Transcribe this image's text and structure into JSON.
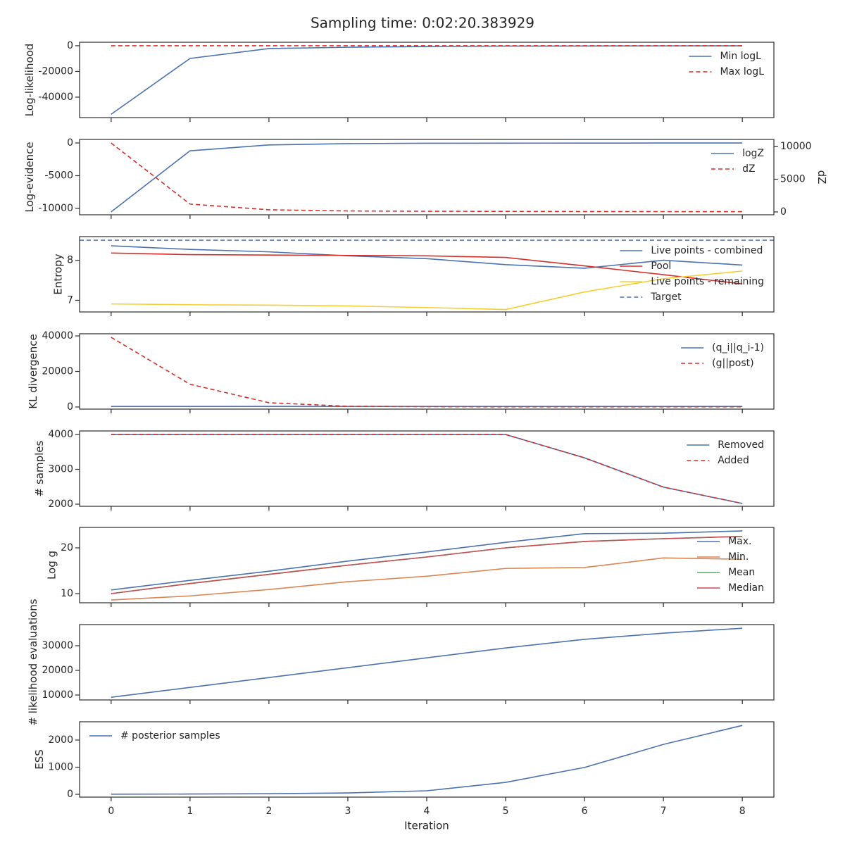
{
  "title": "Sampling time: 0:02:20.383929",
  "chart_data": [
    {
      "type": "line",
      "ylabel": "Log-likelihood",
      "x": [
        0,
        1,
        2,
        3,
        4,
        5,
        6,
        7,
        8
      ],
      "xlim": [
        -0.4,
        8.4
      ],
      "xticks": [
        0,
        1,
        2,
        3,
        4,
        5,
        6,
        7,
        8
      ],
      "ylim": [
        -55900,
        2700
      ],
      "yticks": [
        0,
        -20000,
        -40000
      ],
      "legend": "upper right",
      "series": [
        {
          "name": "Min logL",
          "color": "#4c72b0",
          "dash": false,
          "values": [
            -53300,
            -9900,
            -2200,
            -1200,
            -600,
            -300,
            -200,
            -100,
            -50
          ]
        },
        {
          "name": "Max logL",
          "color": "#d62f2a",
          "dash": true,
          "values": [
            0,
            0,
            0,
            0,
            0,
            0,
            0,
            0,
            0
          ]
        }
      ]
    },
    {
      "type": "line",
      "ylabel": "Log-evidence",
      "y2label": "dZ",
      "x": [
        0,
        1,
        2,
        3,
        4,
        5,
        6,
        7,
        8
      ],
      "xlim": [
        -0.4,
        8.4
      ],
      "xticks": [
        0,
        1,
        2,
        3,
        4,
        5,
        6,
        7,
        8
      ],
      "ylim": [
        -10980,
        540
      ],
      "yticks": [
        0,
        -5000,
        -10000
      ],
      "y2lim": [
        -435,
        11087
      ],
      "y2ticks": [
        0,
        5000,
        10000
      ],
      "legend": "upper right",
      "series": [
        {
          "name": "logZ",
          "color": "#4c72b0",
          "dash": false,
          "values": [
            -10540,
            -1200,
            -300,
            -100,
            -50,
            -30,
            -20,
            -10,
            -5
          ]
        },
        {
          "name": "dZ",
          "color": "#d62f2a",
          "dash": true,
          "axis": "y2",
          "values": [
            10540,
            1200,
            330,
            150,
            100,
            80,
            60,
            50,
            40
          ]
        }
      ]
    },
    {
      "type": "line",
      "ylabel": "Entropy",
      "x": [
        0,
        1,
        2,
        3,
        4,
        5,
        6,
        7,
        8
      ],
      "xlim": [
        -0.4,
        8.4
      ],
      "xticks": [
        0,
        1,
        2,
        3,
        4,
        5,
        6,
        7,
        8
      ],
      "ylim": [
        6.71,
        8.59
      ],
      "yticks": [
        7,
        8
      ],
      "legend": "upper right",
      "series": [
        {
          "name": "Live points - combined",
          "color": "#4c72b0",
          "dash": false,
          "values": [
            8.36,
            8.27,
            8.21,
            8.11,
            8.04,
            7.89,
            7.8,
            8.0,
            7.88
          ]
        },
        {
          "name": "Pool",
          "color": "#d62f2a",
          "dash": false,
          "values": [
            8.18,
            8.14,
            8.13,
            8.12,
            8.11,
            8.07,
            7.86,
            7.64,
            7.41
          ]
        },
        {
          "name": "Live points - remaining",
          "color": "#f5cf2f",
          "dash": false,
          "values": [
            6.91,
            6.89,
            6.88,
            6.86,
            6.82,
            6.77,
            7.21,
            7.54,
            7.73
          ]
        }
      ],
      "hlines": [
        {
          "name": "Target",
          "color": "#4c72b0",
          "dash": true,
          "value": 8.5
        }
      ]
    },
    {
      "type": "line",
      "ylabel": "KL divergence",
      "x": [
        0,
        1,
        2,
        3,
        4,
        5,
        6,
        7,
        8
      ],
      "xlim": [
        -0.4,
        8.4
      ],
      "xticks": [
        0,
        1,
        2,
        3,
        4,
        5,
        6,
        7,
        8
      ],
      "ylim": [
        -1200,
        41200
      ],
      "yticks": [
        0,
        20000,
        40000
      ],
      "legend": "upper right",
      "series": [
        {
          "name": "(q_i||q_i-1)",
          "color": "#4c72b0",
          "dash": false,
          "values": [
            300,
            300,
            300,
            300,
            300,
            300,
            300,
            300,
            300
          ]
        },
        {
          "name": "(g||post)",
          "color": "#d62f2a",
          "dash": true,
          "values": [
            39200,
            12800,
            2400,
            400,
            200,
            100,
            100,
            100,
            100
          ]
        }
      ]
    },
    {
      "type": "line",
      "ylabel": "# samples",
      "x": [
        0,
        1,
        2,
        3,
        4,
        5,
        6,
        7,
        8
      ],
      "xlim": [
        -0.4,
        8.4
      ],
      "xticks": [
        0,
        1,
        2,
        3,
        4,
        5,
        6,
        7,
        8
      ],
      "ylim": [
        1939,
        4102
      ],
      "yticks": [
        2000,
        3000,
        4000
      ],
      "legend": "upper right",
      "series": [
        {
          "name": "Removed",
          "color": "#4c72b0",
          "dash": false,
          "values": [
            4000,
            4000,
            4000,
            4000,
            4000,
            4000,
            3330,
            2490,
            2020
          ]
        },
        {
          "name": "Added",
          "color": "#d62f2a",
          "dash": true,
          "values": [
            4000,
            4000,
            4000,
            4000,
            4000,
            4000,
            3330,
            2490,
            2020
          ]
        }
      ]
    },
    {
      "type": "line",
      "ylabel": "Log g",
      "x": [
        0,
        1,
        2,
        3,
        4,
        5,
        6,
        7,
        8
      ],
      "xlim": [
        -0.4,
        8.4
      ],
      "xticks": [
        0,
        1,
        2,
        3,
        4,
        5,
        6,
        7,
        8
      ],
      "ylim": [
        8,
        24.46
      ],
      "yticks": [
        10,
        20
      ],
      "legend": "upper right",
      "series": [
        {
          "name": "Max.",
          "color": "#4c72b0",
          "dash": false,
          "values": [
            10.8,
            12.9,
            14.9,
            17.1,
            19.1,
            21.2,
            23.1,
            23.2,
            23.7
          ]
        },
        {
          "name": "Min.",
          "color": "#dd8452",
          "dash": false,
          "values": [
            8.6,
            9.5,
            10.9,
            12.6,
            13.8,
            15.5,
            15.7,
            17.8,
            17.5
          ]
        },
        {
          "name": "Mean",
          "color": "#55a868",
          "dash": false,
          "values": [
            10,
            12.2,
            14.2,
            16.2,
            18.0,
            20.0,
            21.4,
            22.0,
            22.5
          ]
        },
        {
          "name": "Median",
          "color": "#c44e52",
          "dash": false,
          "values": [
            10,
            12.2,
            14.2,
            16.2,
            18.0,
            20.0,
            21.4,
            22.0,
            22.5
          ]
        }
      ]
    },
    {
      "type": "line",
      "ylabel": "# likelihood evaluations",
      "x": [
        0,
        1,
        2,
        3,
        4,
        5,
        6,
        7,
        8
      ],
      "xlim": [
        -0.4,
        8.4
      ],
      "xticks": [
        0,
        1,
        2,
        3,
        4,
        5,
        6,
        7,
        8
      ],
      "ylim": [
        8000,
        38570
      ],
      "yticks": [
        10000,
        20000,
        30000
      ],
      "series": [
        {
          "color": "#4c72b0",
          "dash": false,
          "values": [
            9100,
            13100,
            17100,
            21100,
            25100,
            29100,
            32600,
            35100,
            37100
          ]
        }
      ]
    },
    {
      "type": "line",
      "ylabel": "ESS",
      "xlabel": "Iteration",
      "x": [
        0,
        1,
        2,
        3,
        4,
        5,
        6,
        7,
        8
      ],
      "xlim": [
        -0.4,
        8.4
      ],
      "xticks": [
        0,
        1,
        2,
        3,
        4,
        5,
        6,
        7,
        8
      ],
      "ylim": [
        -104,
        2675
      ],
      "yticks": [
        0,
        1000,
        2000
      ],
      "legend": "upper left",
      "series": [
        {
          "name": "# posterior samples",
          "color": "#4c72b0",
          "dash": false,
          "values": [
            5,
            10,
            20,
            50,
            130,
            440,
            990,
            1840,
            2540
          ]
        }
      ]
    }
  ]
}
